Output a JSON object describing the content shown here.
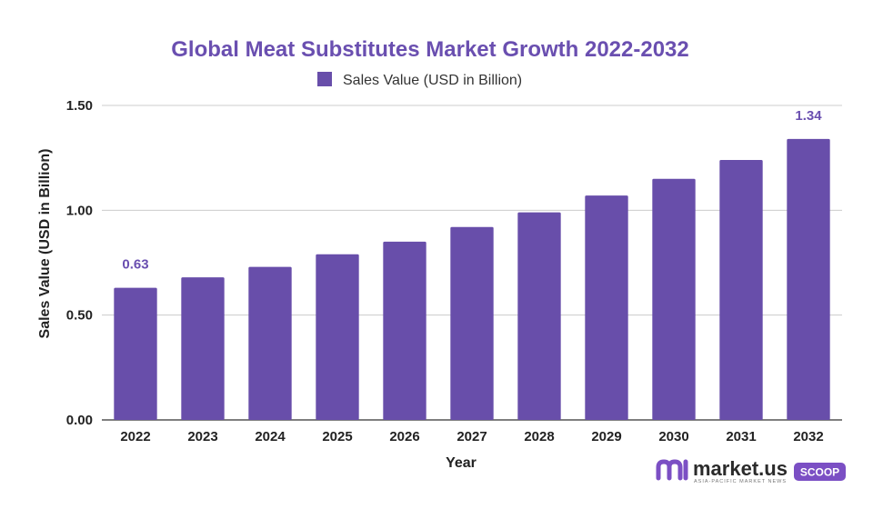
{
  "colors": {
    "bar": "#684eaa",
    "title": "#6a4fb0",
    "grid": "#cccccc",
    "axis": "#555555",
    "badge": "#7b4fc4"
  },
  "chart_data": {
    "type": "bar",
    "title": "Global Meat Substitutes Market Growth 2022-2032",
    "xlabel": "Year",
    "ylabel": "Sales Value (USD in Billion)",
    "ylim": [
      0,
      1.5
    ],
    "yticks": [
      "0.00",
      "0.50",
      "1.00",
      "1.50"
    ],
    "grid": true,
    "legend_position": "top-center",
    "categories": [
      "2022",
      "2023",
      "2024",
      "2025",
      "2026",
      "2027",
      "2028",
      "2029",
      "2030",
      "2031",
      "2032"
    ],
    "series": [
      {
        "name": "Sales Value (USD in Billion)",
        "values": [
          0.63,
          0.68,
          0.73,
          0.79,
          0.85,
          0.92,
          0.99,
          1.07,
          1.15,
          1.24,
          1.34
        ]
      }
    ],
    "data_labels": [
      {
        "index": 0,
        "text": "0.63"
      },
      {
        "index": 10,
        "text": "1.34"
      }
    ]
  },
  "branding": {
    "logo_icon": "market-us-logo-icon",
    "logo_text": "market.us",
    "tagline": "ASIA-PACIFIC MARKET NEWS",
    "badge": "SCOOP"
  }
}
